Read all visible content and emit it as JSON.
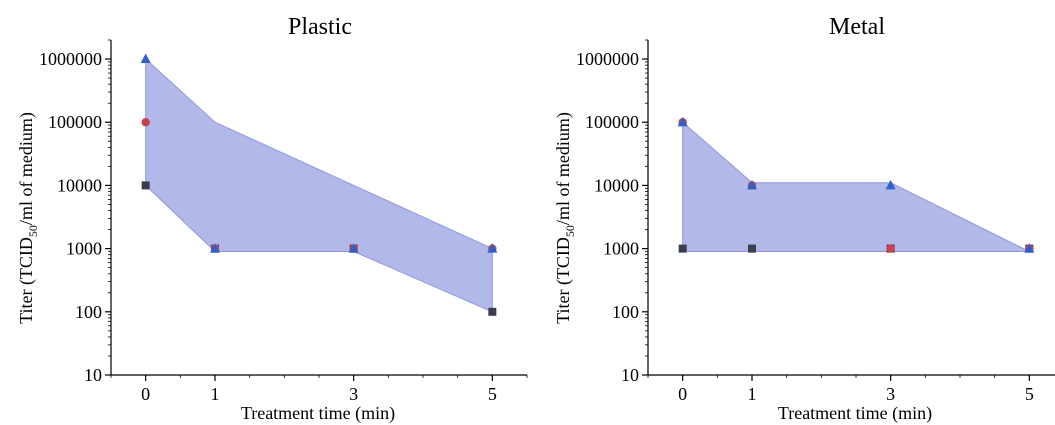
{
  "colors": {
    "band_fill": "#aab0e6",
    "band_stroke": "#8f98de",
    "square": "#3a3d4e",
    "circle": "#c9404f",
    "triangle": "#2f61c8"
  },
  "chart_data": [
    {
      "type": "area",
      "title": "Plastic",
      "xlabel": "Treatment time (min)",
      "ylabel": {
        "main": "Titer (TCID",
        "sub": "50",
        "rest": "/ml of medium)"
      },
      "yscale": "log",
      "ylim": [
        10,
        2000000
      ],
      "xlim": [
        -0.5,
        5.5
      ],
      "xticks": [
        0,
        1,
        3,
        5
      ],
      "xtick_labels": [
        "0",
        "1",
        "3",
        "5"
      ],
      "yticks": [
        10,
        100,
        1000,
        10000,
        100000,
        1000000
      ],
      "ytick_labels": [
        "10",
        "100",
        "1000",
        "10000",
        "100000",
        "1000000"
      ],
      "x": [
        0,
        1,
        3,
        5
      ],
      "band": {
        "upper": [
          1000000,
          100000,
          10000,
          1000
        ],
        "lower": [
          10000,
          900,
          900,
          100
        ]
      },
      "series": [
        {
          "marker": "square",
          "values": [
            10000,
            1000,
            1000,
            100
          ]
        },
        {
          "marker": "circle",
          "values": [
            100000,
            1000,
            1000,
            1000
          ]
        },
        {
          "marker": "triangle",
          "values": [
            1000000,
            1000,
            1000,
            1000
          ]
        }
      ]
    },
    {
      "type": "area",
      "title": "Metal",
      "xlabel": "Treatment time (min)",
      "ylabel": {
        "main": "Titer (TCID",
        "sub": "50",
        "rest": "/ml of medium)"
      },
      "yscale": "log",
      "ylim": [
        10,
        2000000
      ],
      "xlim": [
        -0.5,
        5.5
      ],
      "xticks": [
        0,
        1,
        3,
        5
      ],
      "xtick_labels": [
        "0",
        "1",
        "3",
        "5"
      ],
      "yticks": [
        10,
        100,
        1000,
        10000,
        100000,
        1000000
      ],
      "ytick_labels": [
        "10",
        "100",
        "1000",
        "10000",
        "100000",
        "1000000"
      ],
      "x": [
        0,
        1,
        3,
        5
      ],
      "band": {
        "upper": [
          100000,
          11000,
          11000,
          900
        ],
        "lower": [
          900,
          900,
          900,
          900
        ]
      },
      "series": [
        {
          "marker": "square",
          "values": [
            1000,
            1000,
            1000,
            1000
          ]
        },
        {
          "marker": "circle",
          "values": [
            100000,
            10000,
            1000,
            1000
          ]
        },
        {
          "marker": "triangle",
          "values": [
            100000,
            10000,
            10000,
            1000
          ]
        }
      ]
    }
  ]
}
